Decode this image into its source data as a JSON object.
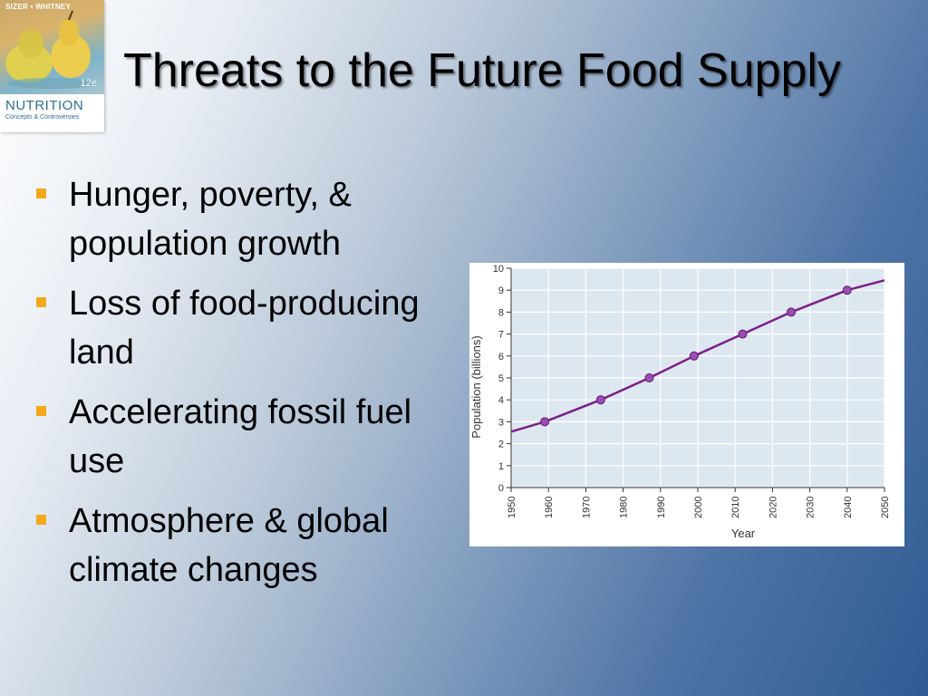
{
  "slide": {
    "title": "Threats to the Future Food Supply",
    "bullets": [
      "Hunger, poverty, & population growth",
      "Loss of food-producing land",
      "Accelerating fossil fuel use",
      "Atmosphere & global climate changes"
    ],
    "bullet_color": "#f4a81a"
  },
  "book_cover": {
    "authors": "SIZER • WHITNEY",
    "edition": "12e",
    "title": "NUTRITION",
    "subtitle": "Concepts & Controversies"
  },
  "chart_data": {
    "type": "line",
    "xlabel": "Year",
    "ylabel": "Population (billions)",
    "xlim": [
      1950,
      2050
    ],
    "ylim": [
      0,
      10
    ],
    "x_ticks": [
      1950,
      1960,
      1970,
      1980,
      1990,
      2000,
      2010,
      2020,
      2030,
      2040,
      2050
    ],
    "y_ticks": [
      0,
      1,
      2,
      3,
      4,
      5,
      6,
      7,
      8,
      9,
      10
    ],
    "grid": true,
    "series": [
      {
        "x": [
          1950,
          1959,
          1974,
          1987,
          1999,
          2012,
          2025,
          2040,
          2050
        ],
        "y": [
          2.55,
          3.0,
          4.0,
          5.0,
          6.0,
          7.0,
          8.0,
          9.0,
          9.45
        ],
        "markers": [
          {
            "x": 1959,
            "y": 3
          },
          {
            "x": 1974,
            "y": 4
          },
          {
            "x": 1987,
            "y": 5
          },
          {
            "x": 1999,
            "y": 6
          },
          {
            "x": 2012,
            "y": 7
          },
          {
            "x": 2025,
            "y": 8
          },
          {
            "x": 2040,
            "y": 9
          }
        ],
        "color": "#7b1f8a"
      }
    ],
    "background_color": "#dde7f0",
    "grid_color": "#ffffff"
  }
}
